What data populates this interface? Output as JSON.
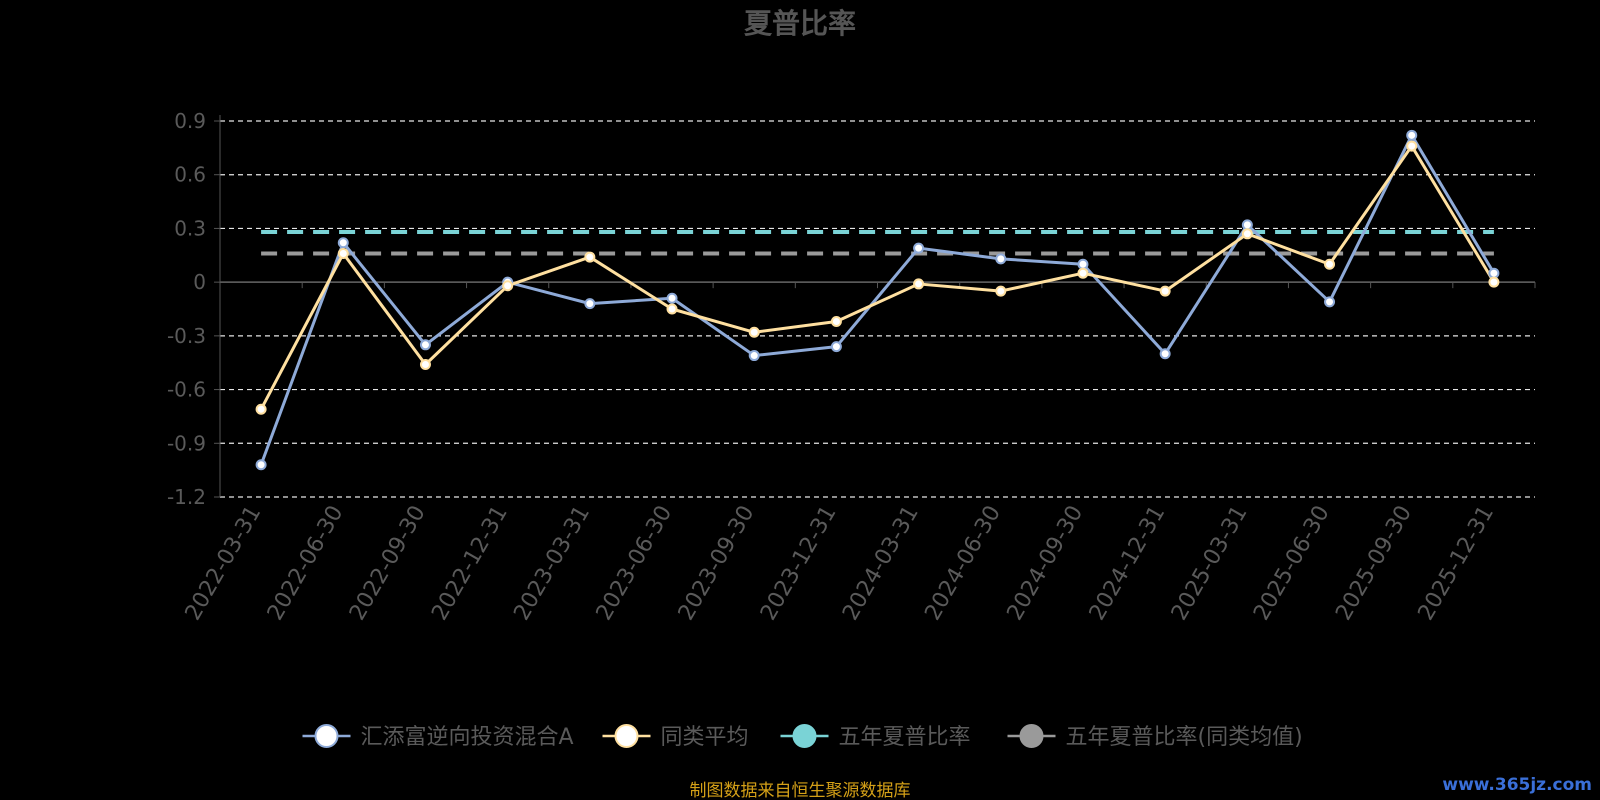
{
  "chart_data": {
    "type": "line",
    "title": "夏普比率",
    "categories": [
      "2022-03-31",
      "2022-06-30",
      "2022-09-30",
      "2022-12-31",
      "2023-03-31",
      "2023-06-30",
      "2023-09-30",
      "2023-12-31",
      "2024-03-31",
      "2024-06-30",
      "2024-09-30",
      "2024-12-31",
      "2025-03-31",
      "2025-06-30",
      "2025-09-30",
      "2025-12-31"
    ],
    "ylim": [
      -1.2,
      0.9
    ],
    "yticks": [
      0.9,
      0.6,
      0.3,
      0,
      -0.3,
      -0.6,
      -0.9,
      -1.2
    ],
    "grid": true,
    "legend_position": "bottom-center",
    "series": [
      {
        "name": "汇添富逆向投资混合A",
        "color": "#8eaad8",
        "values": [
          -1.02,
          0.22,
          -0.35,
          0.0,
          -0.12,
          -0.09,
          -0.41,
          -0.36,
          0.19,
          0.13,
          0.1,
          -0.4,
          0.32,
          -0.11,
          0.82,
          0.05
        ]
      },
      {
        "name": "同类平均",
        "color": "#ffe0a0",
        "values": [
          -0.71,
          0.16,
          -0.46,
          -0.02,
          0.14,
          -0.15,
          -0.28,
          -0.22,
          -0.01,
          -0.05,
          0.05,
          -0.05,
          0.27,
          0.1,
          0.76,
          0.0
        ]
      },
      {
        "name": "五年夏普比率",
        "color": "#7ad3d6",
        "value": 0.28
      },
      {
        "name": "五年夏普比率(同类均值)",
        "color": "#9a9a9a",
        "value": 0.16
      }
    ]
  },
  "footer": "制图数据来自恒生聚源数据库",
  "watermark": "www.365jz.com"
}
